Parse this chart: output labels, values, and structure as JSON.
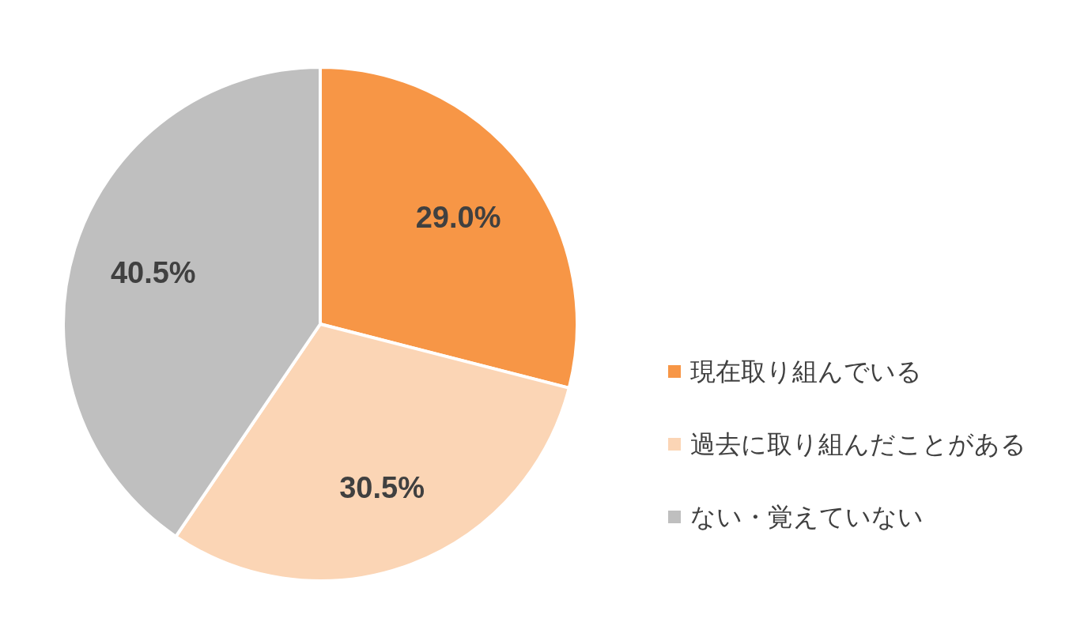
{
  "chart_data": {
    "type": "pie",
    "categories": [
      "現在取り組んでいる",
      "過去に取り組んだことがある",
      "ない・覚えていない"
    ],
    "values": [
      29.0,
      30.5,
      40.5
    ],
    "colors": [
      "#f79646",
      "#fbd5b5",
      "#bfbfbf"
    ],
    "value_labels": [
      "29.0%",
      "30.5%",
      "40.5%"
    ],
    "legend": "right"
  }
}
